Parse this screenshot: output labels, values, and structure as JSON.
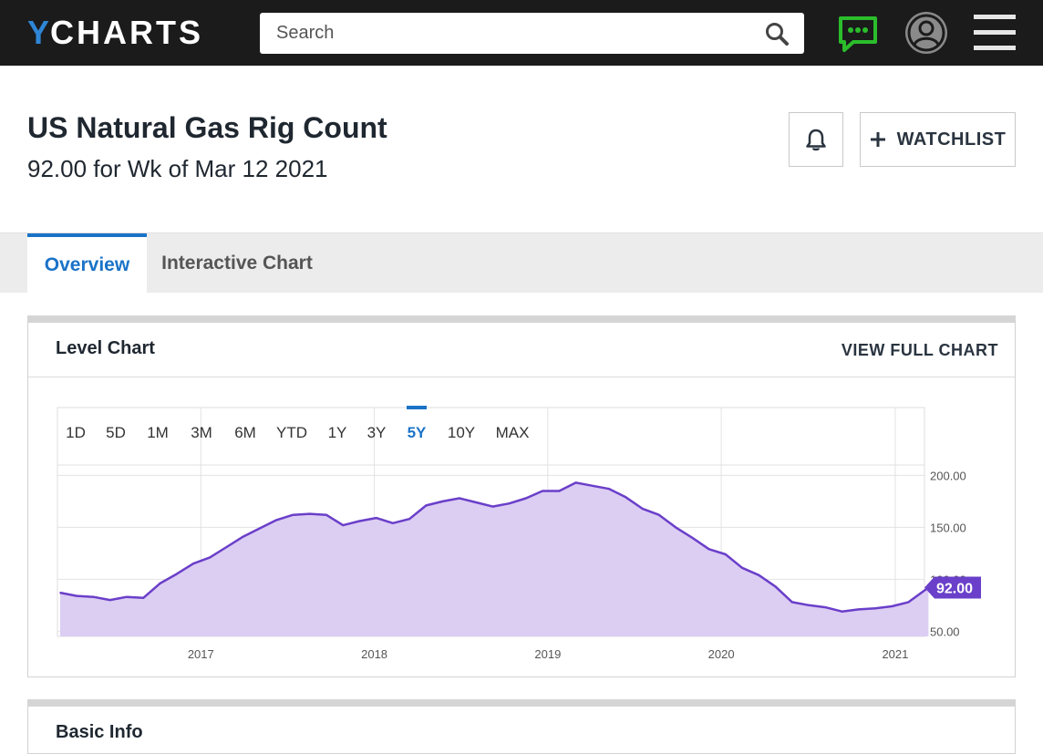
{
  "header": {
    "logo_first": "Y",
    "logo_rest": "CHARTS",
    "search_placeholder": "Search",
    "accent_color": "#2f86d6",
    "chat_icon_color": "#2bbd2b"
  },
  "page": {
    "title": "US Natural Gas Rig Count",
    "subtitle": "92.00 for Wk of Mar 12 2021",
    "watchlist_label": "WATCHLIST"
  },
  "tabs": [
    {
      "label": "Overview",
      "active": true
    },
    {
      "label": "Interactive Chart",
      "active": false
    }
  ],
  "level_chart": {
    "title": "Level Chart",
    "view_full_label": "VIEW FULL CHART",
    "ranges": [
      "1D",
      "5D",
      "1M",
      "3M",
      "6M",
      "YTD",
      "1Y",
      "3Y",
      "5Y",
      "10Y",
      "MAX"
    ],
    "active_range": "5Y",
    "current_value_label": "92.00"
  },
  "chart_data": {
    "type": "area",
    "title": "",
    "xlabel": "",
    "ylabel": "",
    "x_tick_labels": [
      "2017",
      "2018",
      "2019",
      "2020",
      "2021"
    ],
    "y_tick_labels": [
      "200.00",
      "150.00",
      "100.00",
      "50.00"
    ],
    "ylim": [
      45,
      210
    ],
    "grid": true,
    "series_color": "#6a3fc9",
    "fill_color": "#dccdf3",
    "series": [
      {
        "x": [
          "2016-03-11",
          "2016-04-15",
          "2016-05-20",
          "2016-06-24",
          "2016-07-29",
          "2016-09-02",
          "2016-10-07",
          "2016-11-11",
          "2016-12-16",
          "2017-01-20",
          "2017-02-24",
          "2017-03-31",
          "2017-05-05",
          "2017-06-09",
          "2017-07-14",
          "2017-08-18",
          "2017-09-22",
          "2017-10-27",
          "2017-12-01",
          "2018-01-05",
          "2018-02-09",
          "2018-03-16",
          "2018-04-20",
          "2018-05-25",
          "2018-06-29",
          "2018-08-03",
          "2018-09-07",
          "2018-10-12",
          "2018-11-16",
          "2018-12-21",
          "2019-01-25",
          "2019-03-01",
          "2019-04-05",
          "2019-05-10",
          "2019-06-14",
          "2019-07-19",
          "2019-08-23",
          "2019-09-27",
          "2019-11-01",
          "2019-12-06",
          "2020-01-10",
          "2020-02-14",
          "2020-03-20",
          "2020-04-24",
          "2020-05-29",
          "2020-07-03",
          "2020-08-07",
          "2020-09-11",
          "2020-10-16",
          "2020-11-20",
          "2020-12-25",
          "2021-01-29",
          "2021-03-12"
        ],
        "values": [
          87,
          84,
          83,
          80,
          83,
          82,
          96,
          105,
          115,
          121,
          131,
          141,
          149,
          157,
          162,
          163,
          162,
          152,
          156,
          159,
          154,
          158,
          171,
          175,
          178,
          174,
          170,
          173,
          178,
          185,
          185,
          193,
          190,
          187,
          179,
          168,
          162,
          150,
          140,
          129,
          124,
          111,
          104,
          93,
          78,
          75,
          73,
          69,
          71,
          72,
          74,
          78,
          92
        ]
      }
    ]
  },
  "basic_info": {
    "title": "Basic Info"
  }
}
